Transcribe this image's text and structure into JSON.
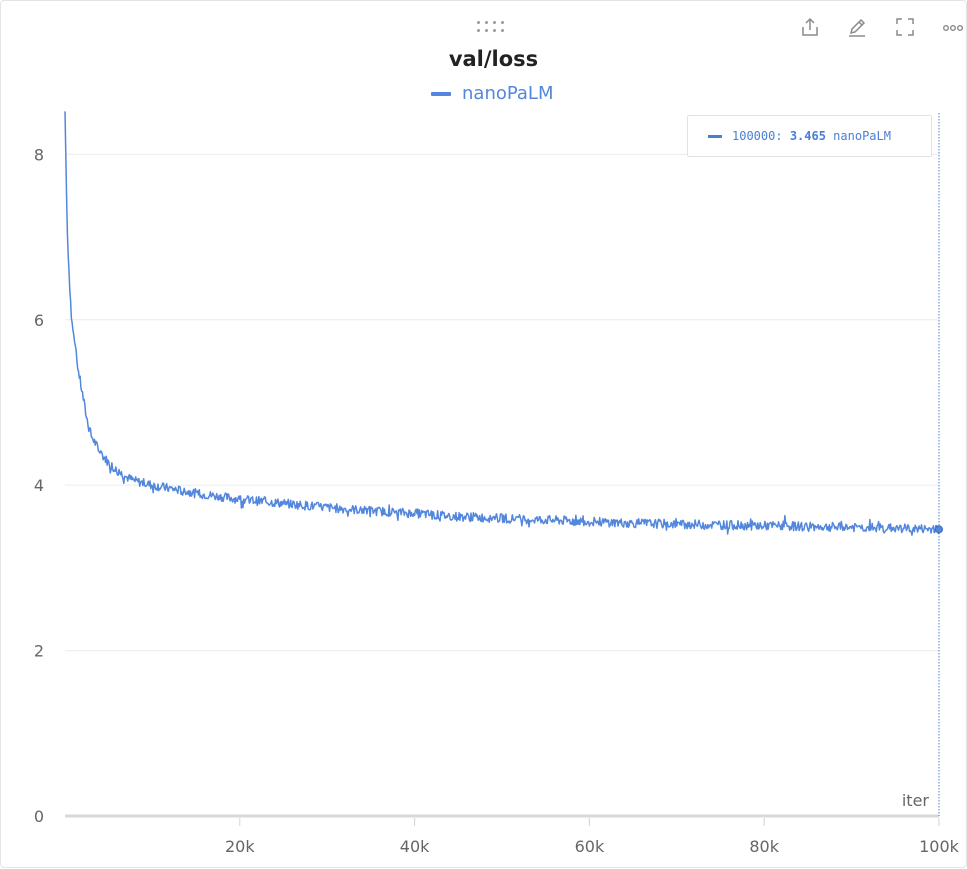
{
  "panel": {
    "toolbar": [
      {
        "name": "export-icon"
      },
      {
        "name": "edit-icon"
      },
      {
        "name": "fullscreen-icon"
      },
      {
        "name": "more-options-icon"
      }
    ]
  },
  "chart_data": {
    "type": "line",
    "title": "val/loss",
    "xlabel": "iter",
    "ylabel": "",
    "xlim": [
      0,
      100000
    ],
    "ylim": [
      0,
      8.5
    ],
    "x_ticks": [
      20000,
      40000,
      60000,
      80000,
      100000
    ],
    "x_tick_labels": [
      "20k",
      "40k",
      "60k",
      "80k",
      "100k"
    ],
    "y_ticks": [
      0,
      2,
      4,
      6,
      8
    ],
    "y_tick_labels": [
      "0",
      "2",
      "4",
      "6",
      "8"
    ],
    "grid": true,
    "legend_position": "top-center",
    "series": [
      {
        "name": "nanoPaLM",
        "color": "#5387dd",
        "x": [
          0,
          250,
          500,
          750,
          1000,
          1500,
          2000,
          2500,
          3000,
          4000,
          5000,
          6000,
          7000,
          8000,
          10000,
          12000,
          15000,
          20000,
          25000,
          30000,
          35000,
          40000,
          45000,
          50000,
          55000,
          60000,
          65000,
          70000,
          75000,
          80000,
          85000,
          90000,
          95000,
          100000
        ],
        "values": [
          8.52,
          7.1,
          6.5,
          6.0,
          5.8,
          5.4,
          5.1,
          4.8,
          4.6,
          4.4,
          4.27,
          4.17,
          4.1,
          4.05,
          4.0,
          3.96,
          3.9,
          3.83,
          3.78,
          3.73,
          3.69,
          3.66,
          3.62,
          3.6,
          3.58,
          3.56,
          3.54,
          3.53,
          3.52,
          3.51,
          3.5,
          3.49,
          3.48,
          3.465
        ]
      }
    ],
    "hover": {
      "x": 100000,
      "x_label": "100000:",
      "value_label": "3.465",
      "series_label": "nanoPaLM"
    }
  }
}
